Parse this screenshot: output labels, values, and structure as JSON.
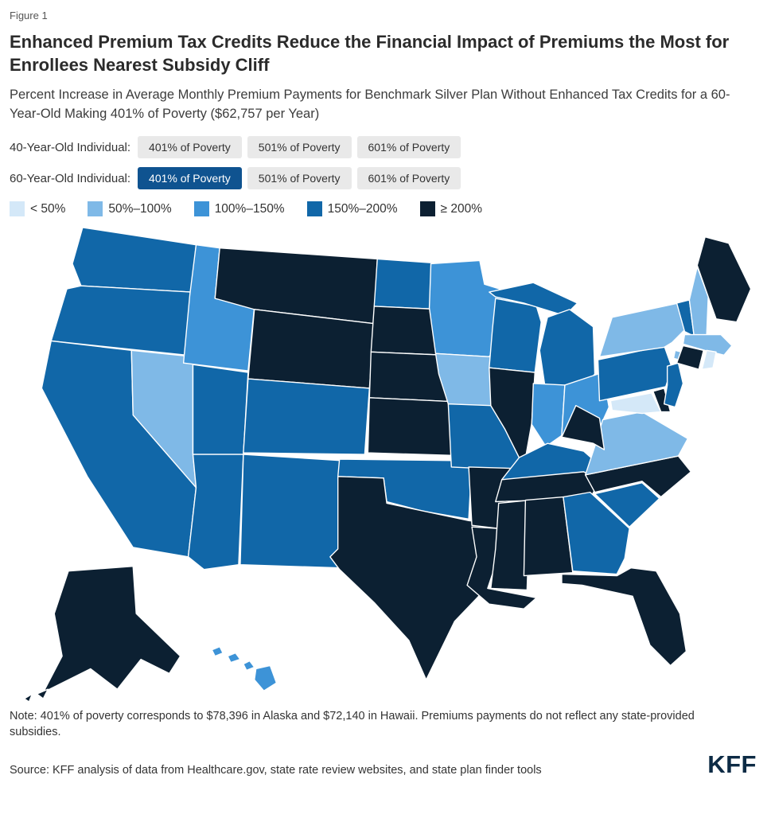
{
  "figure_label": "Figure 1",
  "title": "Enhanced Premium Tax Credits Reduce the Financial Impact of Premiums the Most for Enrollees Nearest Subsidy Cliff",
  "subtitle": "Percent Increase in Average Monthly Premium Payments for Benchmark Silver Plan Without Enhanced Tax Credits for a 60-Year-Old Making 401% of Poverty ($62,757 per Year)",
  "controls": {
    "rows": [
      {
        "label": "40-Year-Old Individual:",
        "options": [
          {
            "label": "401% of Poverty",
            "selected": false
          },
          {
            "label": "501% of Poverty",
            "selected": false
          },
          {
            "label": "601% of Poverty",
            "selected": false
          }
        ]
      },
      {
        "label": "60-Year-Old Individual:",
        "options": [
          {
            "label": "401% of Poverty",
            "selected": true
          },
          {
            "label": "501% of Poverty",
            "selected": false
          },
          {
            "label": "601% of Poverty",
            "selected": false
          }
        ]
      }
    ],
    "selected_color": "#0f5390",
    "default_color": "#e9e9e9"
  },
  "chart_data": {
    "type": "choropleth",
    "title": "Percent Increase in Average Monthly Premium Payments for Benchmark Silver Plan Without Enhanced Tax Credits for a 60-Year-Old Making 401% of Poverty",
    "legend": [
      {
        "label": "< 50%",
        "color": "#d4e8f8"
      },
      {
        "label": "50%–100%",
        "color": "#7fb9e7"
      },
      {
        "label": "100%–150%",
        "color": "#3d93d7"
      },
      {
        "label": "150%–200%",
        "color": "#1167a8"
      },
      {
        "label": "≥ 200%",
        "color": "#0c2032"
      }
    ],
    "states": {
      "WA": "150%–200%",
      "OR": "150%–200%",
      "CA": "150%–200%",
      "NV": "50%–100%",
      "ID": "100%–150%",
      "MT": "≥ 200%",
      "WY": "≥ 200%",
      "UT": "150%–200%",
      "CO": "150%–200%",
      "AZ": "150%–200%",
      "NM": "150%–200%",
      "ND": "150%–200%",
      "SD": "≥ 200%",
      "NE": "≥ 200%",
      "KS": "≥ 200%",
      "OK": "150%–200%",
      "TX": "≥ 200%",
      "MN": "100%–150%",
      "IA": "50%–100%",
      "MO": "150%–200%",
      "AR": "≥ 200%",
      "LA": "≥ 200%",
      "WI": "150%–200%",
      "IL": "≥ 200%",
      "MI": "150%–200%",
      "IN": "100%–150%",
      "OH": "100%–150%",
      "KY": "150%–200%",
      "TN": "≥ 200%",
      "MS": "≥ 200%",
      "AL": "≥ 200%",
      "GA": "150%–200%",
      "FL": "≥ 200%",
      "SC": "150%–200%",
      "NC": "≥ 200%",
      "VA": "50%–100%",
      "WV": "≥ 200%",
      "MD": "< 50%",
      "DE": "≥ 200%",
      "PA": "150%–200%",
      "NJ": "150%–200%",
      "NY": "50%–100%",
      "VT": "150%–200%",
      "NH": "50%–100%",
      "ME": "≥ 200%",
      "MA": "50%–100%",
      "CT": "≥ 200%",
      "RI": "< 50%",
      "AK": "≥ 200%",
      "HI": "100%–150%"
    }
  },
  "note": "Note: 401% of poverty corresponds to $78,396 in Alaska and $72,140 in Hawaii. Premiums payments do not reflect any state-provided subsidies.",
  "source": "Source: KFF analysis of data from Healthcare.gov, state rate review websites, and state plan finder tools",
  "logo": "KFF"
}
